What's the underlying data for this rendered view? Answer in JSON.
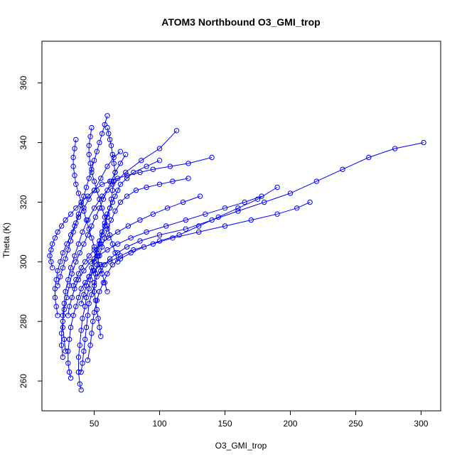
{
  "chart_data": {
    "type": "scatter",
    "title": "ATOM3 Northbound O3_GMI_trop",
    "xlabel": "O3_GMI_trop",
    "ylabel": "Theta (K)",
    "xlim": [
      10,
      315
    ],
    "ylim": [
      250,
      374
    ],
    "x_ticks": [
      50,
      100,
      150,
      200,
      250,
      300
    ],
    "y_ticks": [
      260,
      280,
      300,
      320,
      340,
      360
    ],
    "x_tick_labels": [
      "50",
      "100",
      "150",
      "200",
      "250",
      "300"
    ],
    "y_tick_labels": [
      "260",
      "280",
      "300",
      "320",
      "340",
      "360"
    ],
    "grid": false,
    "legend": "none",
    "marker": "open-circle",
    "connected": true,
    "color": "#0000ff",
    "series": [
      {
        "x": [
          40,
          39,
          38,
          38,
          39,
          40,
          41,
          43,
          44,
          46,
          47,
          49,
          50,
          52,
          54,
          56,
          58,
          60,
          62,
          63,
          64,
          65,
          66,
          65,
          64,
          63,
          62,
          61,
          60
        ],
        "y": [
          257,
          259,
          263,
          268,
          272,
          277,
          281,
          285,
          288,
          291,
          294,
          297,
          300,
          303,
          306,
          309,
          312,
          315,
          318,
          321,
          324,
          327,
          330,
          333,
          336,
          339,
          341,
          343,
          345
        ]
      },
      {
        "x": [
          32,
          31,
          30,
          30,
          31,
          32,
          34,
          36,
          38,
          40,
          43,
          46,
          50,
          55,
          62,
          70,
          80,
          95,
          110,
          130,
          150,
          170,
          190,
          205,
          215
        ],
        "y": [
          261,
          263,
          266,
          270,
          274,
          278,
          282,
          285,
          288,
          291,
          293,
          295,
          297,
          299,
          300,
          302,
          304,
          306,
          308,
          310,
          312,
          314,
          316,
          318,
          320
        ]
      },
      {
        "x": [
          40,
          41,
          42,
          43,
          44,
          45,
          46,
          48,
          50,
          52,
          55,
          58,
          62,
          68,
          75,
          85,
          100,
          120,
          140,
          160,
          180,
          200,
          220,
          240,
          260,
          280,
          302
        ],
        "y": [
          263,
          266,
          270,
          274,
          278,
          282,
          286,
          289,
          292,
          295,
          297,
          299,
          301,
          303,
          305,
          307,
          309,
          311,
          314,
          317,
          320,
          323,
          327,
          331,
          335,
          338,
          340
        ]
      },
      {
        "x": [
          45,
          47,
          48,
          49,
          50,
          52,
          54,
          57,
          60,
          64,
          70,
          78,
          88,
          100,
          115,
          130,
          145,
          160,
          175,
          190
        ],
        "y": [
          267,
          272,
          276,
          280,
          283,
          287,
          290,
          293,
          296,
          299,
          301,
          303,
          305,
          307,
          309,
          312,
          315,
          318,
          321,
          325
        ]
      },
      {
        "x": [
          28,
          27,
          26,
          26,
          27,
          28,
          30,
          32,
          35,
          38,
          41,
          45,
          50,
          56,
          64,
          74,
          86,
          100,
          113
        ],
        "y": [
          270,
          274,
          278,
          282,
          286,
          290,
          294,
          298,
          302,
          306,
          310,
          314,
          318,
          322,
          326,
          330,
          334,
          338,
          344
        ]
      },
      {
        "x": [
          22,
          21,
          20,
          20,
          21,
          22,
          24,
          26,
          29,
          32,
          35,
          38,
          42,
          46,
          50,
          55,
          60,
          65,
          70
        ],
        "y": [
          282,
          285,
          288,
          291,
          294,
          297,
          300,
          303,
          306,
          309,
          312,
          315,
          318,
          321,
          324,
          328,
          332,
          335,
          337
        ]
      },
      {
        "x": [
          18,
          17,
          16,
          17,
          18,
          20,
          22,
          25,
          28,
          32,
          36,
          40,
          45,
          50,
          56,
          62,
          68,
          75,
          85,
          95,
          108,
          122,
          140
        ],
        "y": [
          298,
          300,
          302,
          304,
          306,
          308,
          310,
          312,
          314,
          316,
          318,
          320,
          322,
          324,
          326,
          327,
          328,
          329,
          330,
          331,
          332,
          333,
          335
        ]
      },
      {
        "x": [
          36,
          35,
          34,
          34,
          35,
          36,
          38,
          40,
          42,
          44,
          46,
          48,
          50,
          52,
          54,
          56,
          58,
          60
        ],
        "y": [
          341,
          338,
          335,
          332,
          329,
          326,
          323,
          320,
          317,
          314,
          311,
          308,
          305,
          302,
          299,
          296,
          293,
          290
        ]
      },
      {
        "x": [
          48,
          47,
          46,
          46,
          47,
          48,
          50,
          52,
          54,
          56,
          58,
          60,
          62,
          64,
          66,
          68
        ],
        "y": [
          345,
          342,
          339,
          336,
          333,
          330,
          327,
          324,
          321,
          318,
          315,
          312,
          309,
          306,
          303,
          300
        ]
      },
      {
        "x": [
          30,
          31,
          33,
          35,
          38,
          42,
          47,
          53,
          60,
          68,
          78,
          90,
          105,
          120,
          135,
          150,
          165,
          178
        ],
        "y": [
          282,
          285,
          288,
          291,
          294,
          297,
          300,
          302,
          304,
          306,
          308,
          310,
          312,
          314,
          316,
          318,
          320,
          322
        ]
      },
      {
        "x": [
          55,
          54,
          53,
          52,
          51,
          50,
          50,
          51,
          52,
          54,
          56,
          58,
          60,
          63,
          66,
          70,
          75,
          82,
          90,
          100,
          110,
          122
        ],
        "y": [
          275,
          278,
          281,
          284,
          287,
          290,
          293,
          296,
          299,
          302,
          305,
          308,
          311,
          314,
          317,
          320,
          322,
          324,
          325,
          326,
          327,
          328
        ]
      },
      {
        "x": [
          26,
          25,
          25,
          26,
          27,
          29,
          31,
          33,
          36,
          39,
          42,
          45,
          48,
          51,
          54,
          57,
          60,
          63,
          66,
          70,
          74
        ],
        "y": [
          268,
          272,
          276,
          280,
          284,
          288,
          292,
          296,
          300,
          303,
          306,
          309,
          312,
          315,
          318,
          321,
          324,
          327,
          330,
          333,
          336
        ]
      },
      {
        "x": [
          40,
          42,
          44,
          46,
          48,
          50,
          52,
          54,
          56,
          58,
          60,
          62,
          64,
          66,
          68,
          70,
          75,
          80,
          90,
          100
        ],
        "y": [
          286,
          289,
          292,
          295,
          298,
          301,
          304,
          307,
          310,
          313,
          316,
          318,
          320,
          322,
          324,
          326,
          328,
          330,
          332,
          334
        ]
      },
      {
        "x": [
          60,
          58,
          56,
          54,
          52,
          50,
          48,
          46,
          44,
          42,
          40,
          38,
          36,
          34,
          32,
          30,
          28,
          26,
          24,
          22
        ],
        "y": [
          349,
          346,
          343,
          340,
          337,
          334,
          331,
          328,
          325,
          322,
          319,
          316,
          313,
          310,
          307,
          304,
          301,
          298,
          295,
          292
        ]
      },
      {
        "x": [
          34,
          36,
          38,
          40,
          43,
          46,
          50,
          55,
          61,
          68,
          76,
          85,
          95,
          106,
          118,
          131
        ],
        "y": [
          292,
          294,
          296,
          298,
          300,
          302,
          304,
          306,
          308,
          310,
          312,
          314,
          316,
          318,
          320,
          322
        ]
      }
    ]
  }
}
